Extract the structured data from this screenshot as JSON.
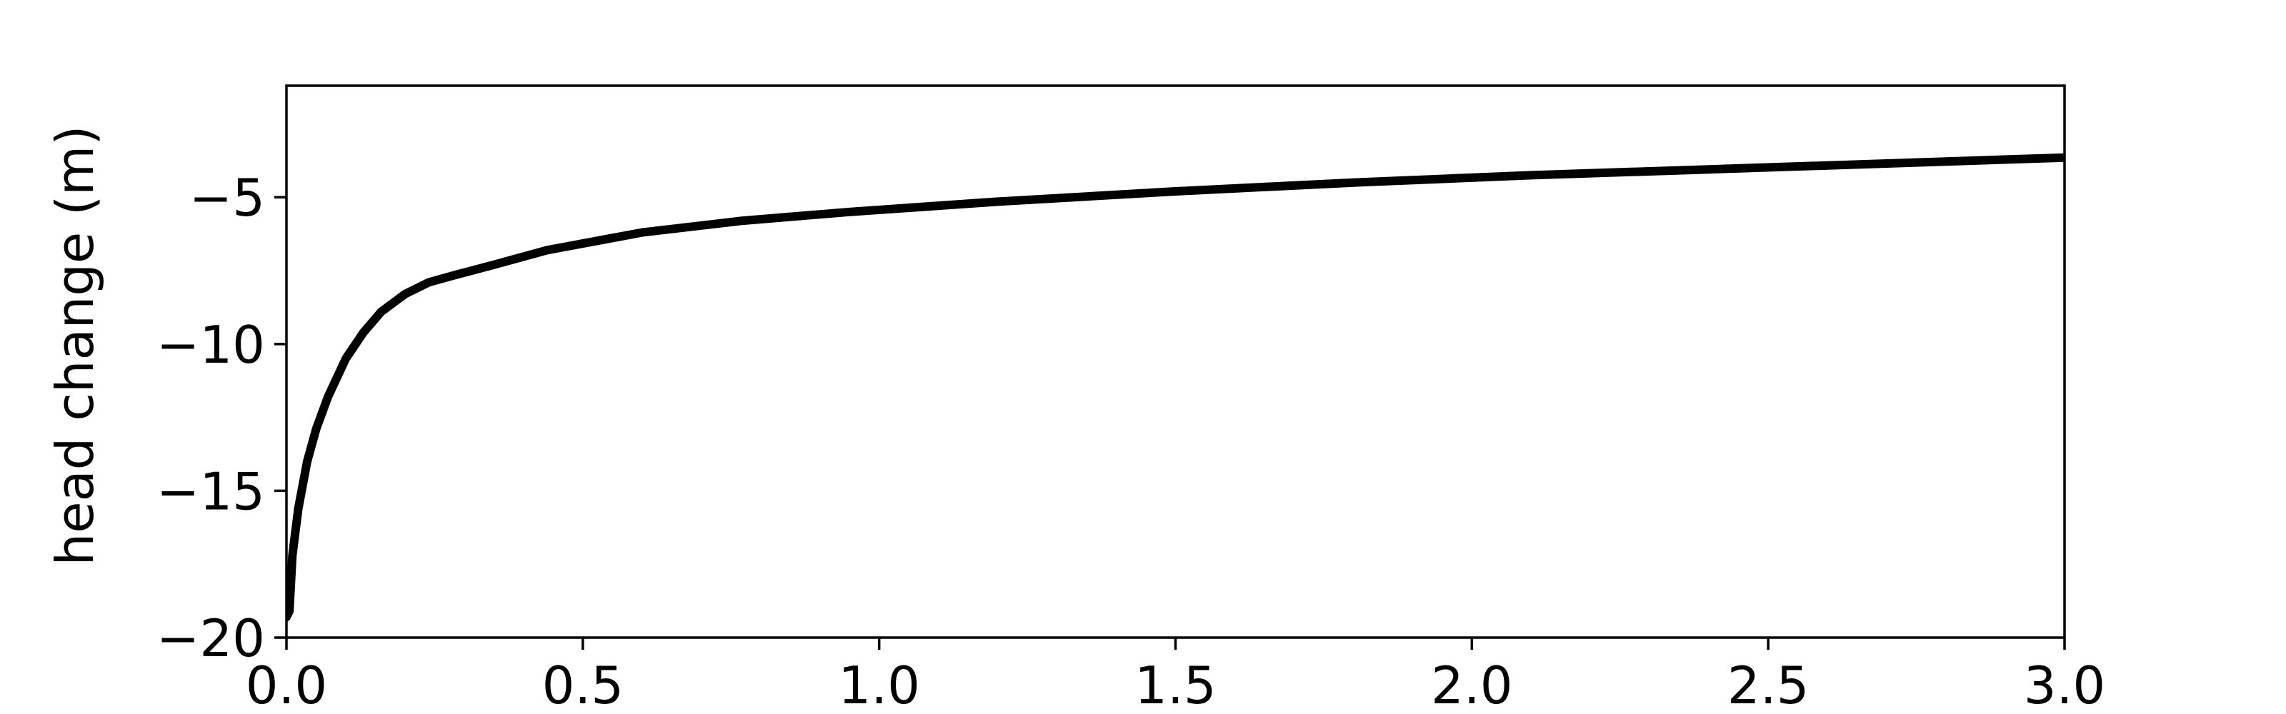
{
  "chart_data": {
    "type": "line",
    "title": "",
    "xlabel": "",
    "ylabel": "head change (m)",
    "xlim": [
      0.0,
      3.0
    ],
    "ylim": [
      -20,
      -1.2
    ],
    "x_ticks": [
      "0.0",
      "0.5",
      "1.0",
      "1.5",
      "2.0",
      "2.5",
      "3.0"
    ],
    "x_tick_values": [
      0.0,
      0.5,
      1.0,
      1.5,
      2.0,
      2.5,
      3.0
    ],
    "y_ticks": [
      "−20",
      "−15",
      "−10",
      "−5"
    ],
    "y_tick_values": [
      -20,
      -15,
      -10,
      -5
    ],
    "grid": false,
    "line_color": "#000000",
    "series": [
      {
        "x": [
          0.0,
          0.005,
          0.01,
          0.02,
          0.035,
          0.05,
          0.07,
          0.1,
          0.13,
          0.16,
          0.2,
          0.24,
          0.275,
          0.35,
          0.44,
          0.6,
          0.77,
          0.95,
          1.2,
          1.5,
          1.8,
          2.1,
          2.4,
          2.7,
          3.0
        ],
        "y": [
          -19.3,
          -19.1,
          -17.2,
          -15.6,
          -14.0,
          -12.9,
          -11.8,
          -10.5,
          -9.6,
          -8.9,
          -8.3,
          -7.9,
          -7.7,
          -7.3,
          -6.8,
          -6.2,
          -5.8,
          -5.5,
          -5.15,
          -4.8,
          -4.5,
          -4.25,
          -4.05,
          -3.85,
          -3.65
        ]
      }
    ]
  }
}
